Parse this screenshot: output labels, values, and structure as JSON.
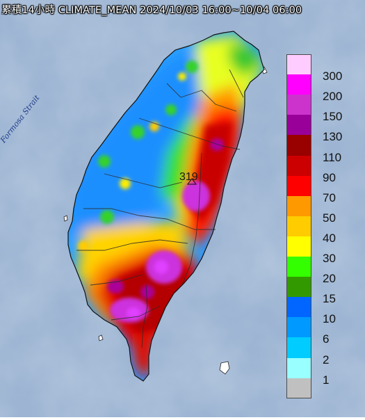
{
  "title": "累積14小時 CLIMATE_MEAN 2024/10/03 16:00~10/04 06:00",
  "strait_label": "Formosa Strait",
  "peak_value": "319",
  "legend": [
    {
      "label": "300",
      "color": "#ffccff"
    },
    {
      "label": "200",
      "color": "#ff00ff"
    },
    {
      "label": "150",
      "color": "#cc33cc"
    },
    {
      "label": "130",
      "color": "#990099"
    },
    {
      "label": "110",
      "color": "#990000"
    },
    {
      "label": "90",
      "color": "#cc0000"
    },
    {
      "label": "70",
      "color": "#ff0000"
    },
    {
      "label": "50",
      "color": "#ff9900"
    },
    {
      "label": "40",
      "color": "#ffcc00"
    },
    {
      "label": "30",
      "color": "#ffff00"
    },
    {
      "label": "20",
      "color": "#33ff00"
    },
    {
      "label": "15",
      "color": "#339900"
    },
    {
      "label": "10",
      "color": "#0066ff"
    },
    {
      "label": "6",
      "color": "#0099ff"
    },
    {
      "label": "2",
      "color": "#00ccff"
    },
    {
      "label": "1",
      "color": "#99ffff"
    },
    {
      "label": "",
      "color": "#c0c0c0"
    }
  ],
  "legend_labels_visible": [
    "300",
    "200",
    "150",
    "130",
    "110",
    "90",
    "70",
    "50",
    "40",
    "30",
    "20",
    "15",
    "10",
    "6",
    "2",
    "1"
  ],
  "colors": {
    "ocean": "#9fb8d6",
    "ocean_dark": "#7f9cc0",
    "border_lines": "#333333"
  }
}
